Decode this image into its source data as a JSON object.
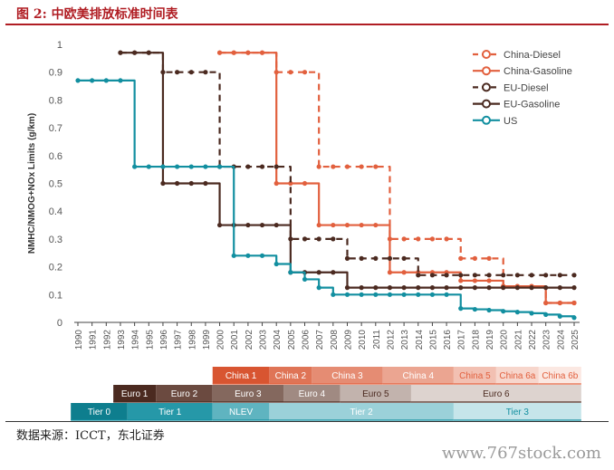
{
  "header": {
    "title": "图 2: 中欧美排放标准时间表"
  },
  "source": "数据来源：ICCT，东北证券",
  "watermark": "www.767stock.com",
  "colors": {
    "china_diesel": "#e2603e",
    "china_gasoline": "#e2603e",
    "eu_diesel": "#4b2a20",
    "eu_gasoline": "#4b2a20",
    "us": "#128fa0",
    "axis_text": "#555555",
    "axis_label": "#333333"
  },
  "chart_data": {
    "type": "line",
    "ylabel": "NMHC/NMOG+NOx Limits (g/km)",
    "xlabel": "",
    "x": [
      1990,
      1991,
      1992,
      1993,
      1994,
      1995,
      1996,
      1997,
      1998,
      1999,
      2000,
      2001,
      2002,
      2003,
      2004,
      2005,
      2006,
      2007,
      2008,
      2009,
      2010,
      2011,
      2012,
      2013,
      2014,
      2015,
      2016,
      2017,
      2018,
      2019,
      2020,
      2021,
      2022,
      2023,
      2024,
      2025
    ],
    "ylim": [
      0,
      1
    ],
    "yticks": [
      "0",
      "0.1",
      "0.2",
      "0.3",
      "0.4",
      "0.5",
      "0.6",
      "0.7",
      "0.8",
      "0.9",
      "1"
    ],
    "grid": false,
    "legend_position": "top-right",
    "series": [
      {
        "name": "China-Diesel",
        "style": "dashed",
        "color": "#e2603e",
        "points": [
          [
            2000,
            0.97
          ],
          [
            2001,
            0.97
          ],
          [
            2002,
            0.97
          ],
          [
            2003,
            0.97
          ],
          [
            2004,
            0.9
          ],
          [
            2005,
            0.9
          ],
          [
            2006,
            0.9
          ],
          [
            2007,
            0.56
          ],
          [
            2008,
            0.56
          ],
          [
            2009,
            0.56
          ],
          [
            2010,
            0.56
          ],
          [
            2011,
            0.56
          ],
          [
            2012,
            0.3
          ],
          [
            2013,
            0.3
          ],
          [
            2014,
            0.3
          ],
          [
            2015,
            0.3
          ],
          [
            2016,
            0.3
          ],
          [
            2017,
            0.23
          ],
          [
            2018,
            0.23
          ],
          [
            2019,
            0.23
          ],
          [
            2020,
            0.13
          ],
          [
            2021,
            0.13
          ],
          [
            2022,
            0.13
          ],
          [
            2023,
            0.07
          ],
          [
            2024,
            0.07
          ],
          [
            2025,
            0.07
          ]
        ]
      },
      {
        "name": "China-Gasoline",
        "style": "solid",
        "color": "#e2603e",
        "points": [
          [
            2000,
            0.97
          ],
          [
            2001,
            0.97
          ],
          [
            2002,
            0.97
          ],
          [
            2003,
            0.97
          ],
          [
            2004,
            0.5
          ],
          [
            2005,
            0.5
          ],
          [
            2006,
            0.5
          ],
          [
            2007,
            0.35
          ],
          [
            2008,
            0.35
          ],
          [
            2009,
            0.35
          ],
          [
            2010,
            0.35
          ],
          [
            2011,
            0.35
          ],
          [
            2012,
            0.18
          ],
          [
            2013,
            0.18
          ],
          [
            2014,
            0.18
          ],
          [
            2015,
            0.18
          ],
          [
            2016,
            0.18
          ],
          [
            2017,
            0.15
          ],
          [
            2018,
            0.15
          ],
          [
            2019,
            0.15
          ],
          [
            2020,
            0.13
          ],
          [
            2021,
            0.13
          ],
          [
            2022,
            0.13
          ],
          [
            2023,
            0.07
          ],
          [
            2024,
            0.07
          ],
          [
            2025,
            0.07
          ]
        ]
      },
      {
        "name": "EU-Diesel",
        "style": "dashed",
        "color": "#4b2a20",
        "points": [
          [
            1993,
            0.97
          ],
          [
            1994,
            0.97
          ],
          [
            1995,
            0.97
          ],
          [
            1996,
            0.9
          ],
          [
            1997,
            0.9
          ],
          [
            1998,
            0.9
          ],
          [
            1999,
            0.9
          ],
          [
            2000,
            0.56
          ],
          [
            2001,
            0.56
          ],
          [
            2002,
            0.56
          ],
          [
            2003,
            0.56
          ],
          [
            2004,
            0.56
          ],
          [
            2005,
            0.3
          ],
          [
            2006,
            0.3
          ],
          [
            2007,
            0.3
          ],
          [
            2008,
            0.3
          ],
          [
            2009,
            0.23
          ],
          [
            2010,
            0.23
          ],
          [
            2011,
            0.23
          ],
          [
            2012,
            0.23
          ],
          [
            2013,
            0.23
          ],
          [
            2014,
            0.17
          ],
          [
            2015,
            0.17
          ],
          [
            2016,
            0.17
          ],
          [
            2017,
            0.17
          ],
          [
            2018,
            0.17
          ],
          [
            2019,
            0.17
          ],
          [
            2020,
            0.17
          ],
          [
            2021,
            0.17
          ],
          [
            2022,
            0.17
          ],
          [
            2023,
            0.17
          ],
          [
            2024,
            0.17
          ],
          [
            2025,
            0.17
          ]
        ]
      },
      {
        "name": "EU-Gasoline",
        "style": "solid",
        "color": "#4b2a20",
        "points": [
          [
            1993,
            0.97
          ],
          [
            1994,
            0.97
          ],
          [
            1995,
            0.97
          ],
          [
            1996,
            0.5
          ],
          [
            1997,
            0.5
          ],
          [
            1998,
            0.5
          ],
          [
            1999,
            0.5
          ],
          [
            2000,
            0.35
          ],
          [
            2001,
            0.35
          ],
          [
            2002,
            0.35
          ],
          [
            2003,
            0.35
          ],
          [
            2004,
            0.35
          ],
          [
            2005,
            0.18
          ],
          [
            2006,
            0.18
          ],
          [
            2007,
            0.18
          ],
          [
            2008,
            0.18
          ],
          [
            2009,
            0.125
          ],
          [
            2010,
            0.125
          ],
          [
            2011,
            0.125
          ],
          [
            2012,
            0.125
          ],
          [
            2013,
            0.125
          ],
          [
            2014,
            0.125
          ],
          [
            2015,
            0.125
          ],
          [
            2016,
            0.125
          ],
          [
            2017,
            0.125
          ],
          [
            2018,
            0.125
          ],
          [
            2019,
            0.125
          ],
          [
            2020,
            0.125
          ],
          [
            2021,
            0.125
          ],
          [
            2022,
            0.125
          ],
          [
            2023,
            0.125
          ],
          [
            2024,
            0.125
          ],
          [
            2025,
            0.125
          ]
        ]
      },
      {
        "name": "US",
        "style": "solid",
        "color": "#128fa0",
        "points": [
          [
            1990,
            0.87
          ],
          [
            1991,
            0.87
          ],
          [
            1992,
            0.87
          ],
          [
            1993,
            0.87
          ],
          [
            1994,
            0.56
          ],
          [
            1995,
            0.56
          ],
          [
            1996,
            0.56
          ],
          [
            1997,
            0.56
          ],
          [
            1998,
            0.56
          ],
          [
            1999,
            0.56
          ],
          [
            2000,
            0.56
          ],
          [
            2001,
            0.24
          ],
          [
            2002,
            0.24
          ],
          [
            2003,
            0.24
          ],
          [
            2004,
            0.21
          ],
          [
            2005,
            0.18
          ],
          [
            2006,
            0.155
          ],
          [
            2007,
            0.125
          ],
          [
            2008,
            0.1
          ],
          [
            2009,
            0.1
          ],
          [
            2010,
            0.1
          ],
          [
            2011,
            0.1
          ],
          [
            2012,
            0.1
          ],
          [
            2013,
            0.1
          ],
          [
            2014,
            0.1
          ],
          [
            2015,
            0.1
          ],
          [
            2016,
            0.1
          ],
          [
            2017,
            0.05
          ],
          [
            2018,
            0.047
          ],
          [
            2019,
            0.044
          ],
          [
            2020,
            0.04
          ],
          [
            2021,
            0.037
          ],
          [
            2022,
            0.033
          ],
          [
            2023,
            0.028
          ],
          [
            2024,
            0.022
          ],
          [
            2025,
            0.017
          ]
        ]
      }
    ],
    "standards": [
      {
        "row": "China",
        "color": "#e2603e",
        "bands": [
          {
            "label": "China 1",
            "from": 2000,
            "to": 2003,
            "fill": "#d85531",
            "text": "#ffffff"
          },
          {
            "label": "China 2",
            "from": 2004,
            "to": 2006,
            "fill": "#df7456",
            "text": "#ffffff"
          },
          {
            "label": "China 3",
            "from": 2007,
            "to": 2011,
            "fill": "#e58c73",
            "text": "#ffffff"
          },
          {
            "label": "China 4",
            "from": 2012,
            "to": 2016,
            "fill": "#eba591",
            "text": "#ffffff"
          },
          {
            "label": "China 5",
            "from": 2017,
            "to": 2019,
            "fill": "#f2c0b2",
            "text": "#e2603e"
          },
          {
            "label": "China 6a",
            "from": 2020,
            "to": 2022,
            "fill": "#f7d6cc",
            "text": "#e2603e"
          },
          {
            "label": "China 6b",
            "from": 2023,
            "to": 2025,
            "fill": "#fbe8e2",
            "text": "#e2603e"
          }
        ]
      },
      {
        "row": "EU",
        "color": "#4b2a20",
        "bands": [
          {
            "label": "Euro 1",
            "from": 1993,
            "to": 1995,
            "fill": "#4b2a20",
            "text": "#ffffff"
          },
          {
            "label": "Euro 2",
            "from": 1996,
            "to": 1999,
            "fill": "#6b4a40",
            "text": "#ffffff"
          },
          {
            "label": "Euro 3",
            "from": 2000,
            "to": 2004,
            "fill": "#84685e",
            "text": "#ffffff"
          },
          {
            "label": "Euro 4",
            "from": 2005,
            "to": 2008,
            "fill": "#a08a82",
            "text": "#ffffff"
          },
          {
            "label": "Euro 5",
            "from": 2009,
            "to": 2013,
            "fill": "#c2b3ad",
            "text": "#4b2a20"
          },
          {
            "label": "Euro 6",
            "from": 2014,
            "to": 2025,
            "fill": "#ddd3cf",
            "text": "#4b2a20"
          }
        ]
      },
      {
        "row": "US",
        "color": "#128fa0",
        "bands": [
          {
            "label": "Tier 0",
            "from": 1990,
            "to": 1993,
            "fill": "#0e7e8e",
            "text": "#ffffff"
          },
          {
            "label": "Tier 1",
            "from": 1994,
            "to": 1999,
            "fill": "#2698a8",
            "text": "#ffffff"
          },
          {
            "label": "NLEV",
            "from": 2000,
            "to": 2003,
            "fill": "#5fb4c0",
            "text": "#ffffff"
          },
          {
            "label": "Tier 2",
            "from": 2004,
            "to": 2016,
            "fill": "#9bd1d9",
            "text": "#ffffff"
          },
          {
            "label": "Tier 3",
            "from": 2017,
            "to": 2025,
            "fill": "#c6e5ea",
            "text": "#128fa0"
          }
        ]
      }
    ]
  }
}
